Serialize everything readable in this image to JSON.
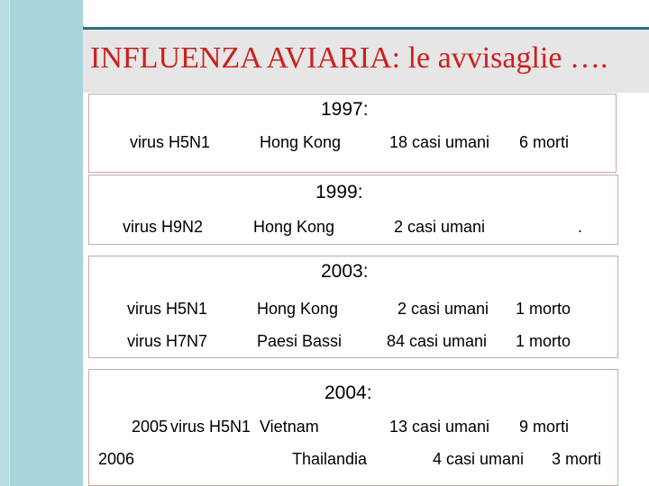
{
  "title": "INFLUENZA AVIARIA: le avvisaglie ….",
  "y1997": {
    "year": "1997:",
    "row": {
      "virus": "virus H5N1",
      "place": "Hong Kong",
      "cases": "18 casi umani",
      "deaths": "6 morti"
    }
  },
  "y1999": {
    "year": "1999:",
    "row": {
      "virus": "virus H9N2",
      "place": "Hong Kong",
      "cases": "2 casi umani",
      "deaths": "."
    }
  },
  "y2003": {
    "year": "2003:",
    "rows": [
      {
        "virus": "virus H5N1",
        "place": "Hong Kong",
        "cases": "2 casi umani",
        "deaths": "1 morto"
      },
      {
        "virus": "virus H7N7",
        "place": "Paesi Bassi",
        "cases": "84 casi umani",
        "deaths": "1 morto"
      }
    ]
  },
  "y2004": {
    "year": "2004:",
    "row1": {
      "prefix": "2005",
      "virus": "virus H5N1",
      "place": "Vietnam",
      "cases": "13 casi umani",
      "deaths": "9 morti"
    },
    "row2": {
      "prefix": "2006",
      "place": "Thailandia",
      "cases": "4 casi umani",
      "deaths": "3 morti"
    }
  }
}
